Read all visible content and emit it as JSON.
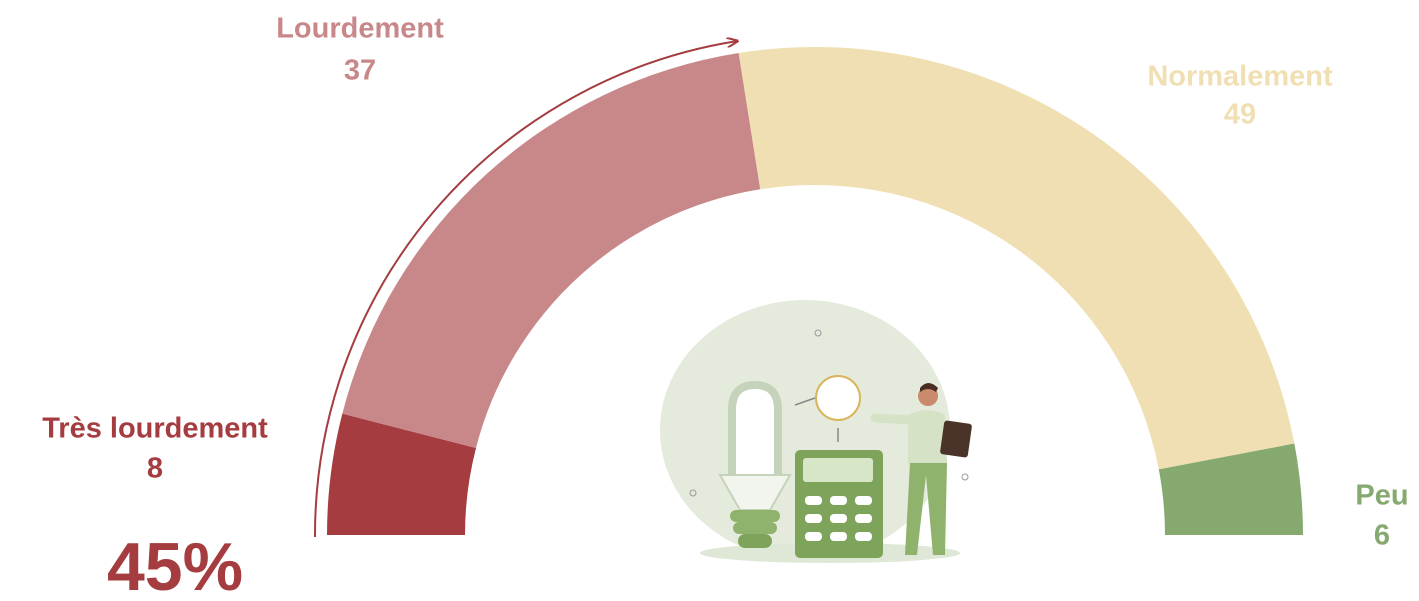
{
  "chart_data": {
    "type": "gauge",
    "categories": [
      "Très lourdement",
      "Lourdement",
      "Normalement",
      "Peu"
    ],
    "values": [
      8,
      37,
      49,
      6
    ],
    "colors": [
      "#a43c40",
      "#c8888a",
      "#f0dfb2",
      "#86a96f"
    ],
    "annotation": "45%"
  }
}
